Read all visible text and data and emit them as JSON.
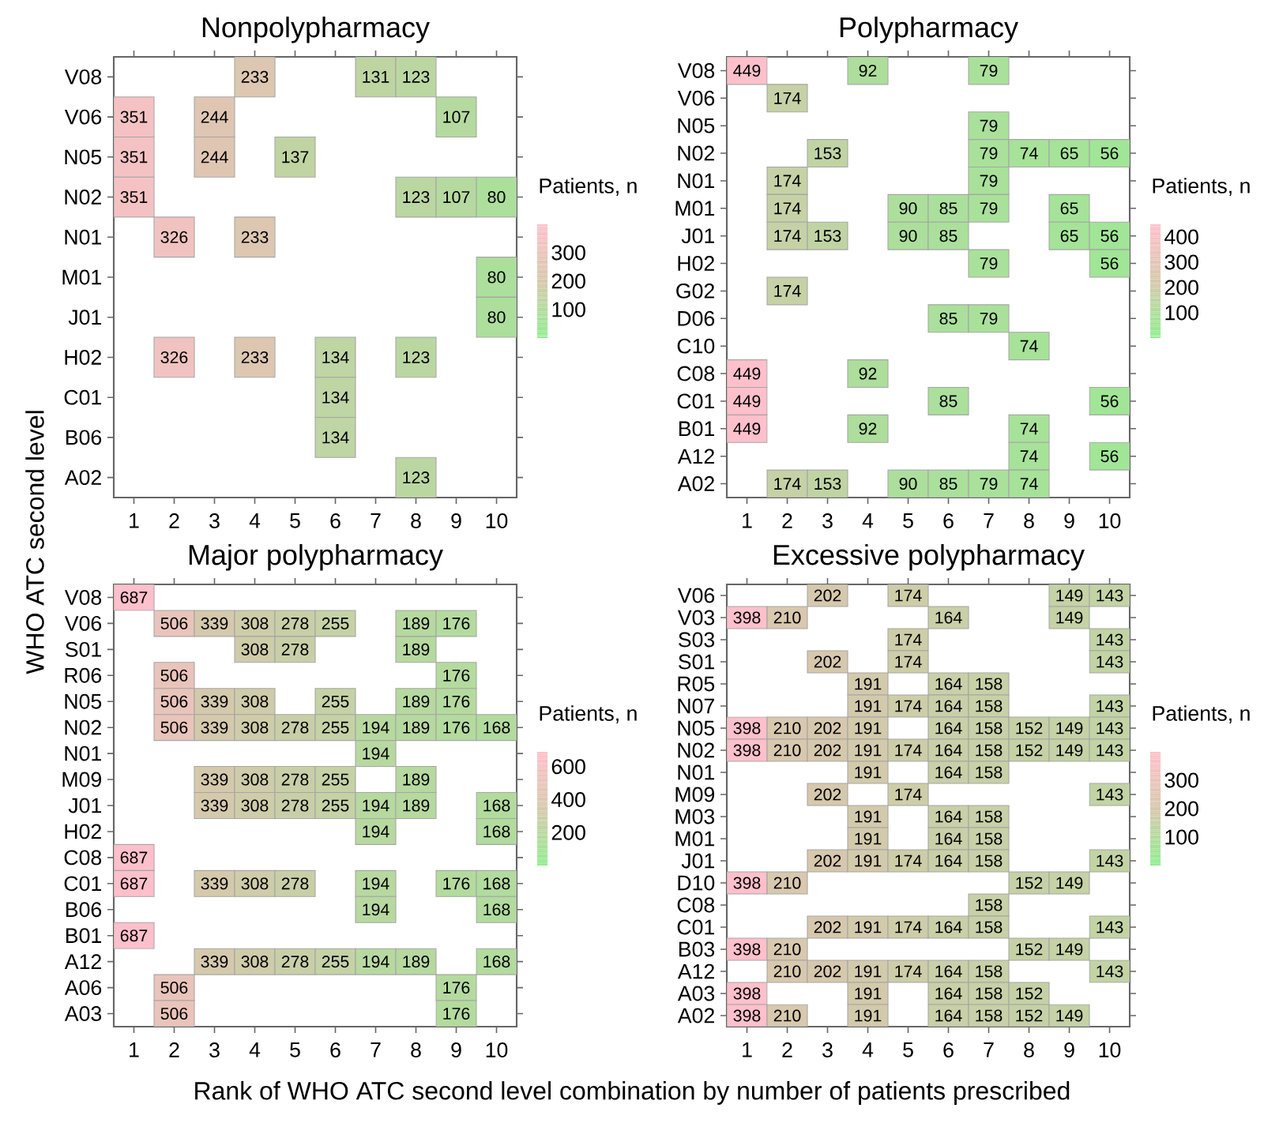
{
  "chart_data": [
    {
      "type": "heatmap",
      "title": "Nonpolypharmacy",
      "ylabel": "WHO ATC second level",
      "clabel": "Patients, n",
      "data_labels": true,
      "categories": [
        "1",
        "2",
        "3",
        "4",
        "5",
        "6",
        "7",
        "8",
        "9",
        "10"
      ],
      "y_categories": [
        "V08",
        "V06",
        "N05",
        "N02",
        "N01",
        "M01",
        "J01",
        "H02",
        "C01",
        "B06",
        "A02"
      ],
      "cells": [
        [
          null,
          null,
          null,
          233,
          null,
          null,
          131,
          123,
          null,
          null
        ],
        [
          351,
          null,
          244,
          null,
          null,
          null,
          null,
          null,
          107,
          null
        ],
        [
          351,
          null,
          244,
          null,
          137,
          null,
          null,
          null,
          null,
          null
        ],
        [
          351,
          null,
          null,
          null,
          null,
          null,
          null,
          123,
          107,
          80
        ],
        [
          null,
          326,
          null,
          233,
          null,
          null,
          null,
          null,
          null,
          null
        ],
        [
          null,
          null,
          null,
          null,
          null,
          null,
          null,
          null,
          null,
          80
        ],
        [
          null,
          null,
          null,
          null,
          null,
          null,
          null,
          null,
          null,
          80
        ],
        [
          null,
          326,
          null,
          233,
          null,
          134,
          null,
          123,
          null,
          null
        ],
        [
          null,
          null,
          null,
          null,
          null,
          134,
          null,
          null,
          null,
          null
        ],
        [
          null,
          null,
          null,
          null,
          null,
          134,
          null,
          null,
          null,
          null
        ],
        [
          null,
          null,
          null,
          null,
          null,
          null,
          null,
          123,
          null,
          null
        ]
      ],
      "clim": [
        0,
        400
      ],
      "cticks": [
        100,
        200,
        300
      ]
    },
    {
      "type": "heatmap",
      "title": "Polypharmacy",
      "clabel": "Patients, n",
      "data_labels": true,
      "categories": [
        "1",
        "2",
        "3",
        "4",
        "5",
        "6",
        "7",
        "8",
        "9",
        "10"
      ],
      "y_categories": [
        "V08",
        "V06",
        "N05",
        "N02",
        "N01",
        "M01",
        "J01",
        "H02",
        "G02",
        "D06",
        "C10",
        "C08",
        "C01",
        "B01",
        "A12",
        "A02"
      ],
      "cells": [
        [
          449,
          null,
          null,
          92,
          null,
          null,
          79,
          null,
          null,
          null
        ],
        [
          null,
          174,
          null,
          null,
          null,
          null,
          null,
          null,
          null,
          null
        ],
        [
          null,
          null,
          null,
          null,
          null,
          null,
          79,
          null,
          null,
          null
        ],
        [
          null,
          null,
          153,
          null,
          null,
          null,
          79,
          74,
          65,
          56
        ],
        [
          null,
          174,
          null,
          null,
          null,
          null,
          79,
          null,
          null,
          null
        ],
        [
          null,
          174,
          null,
          null,
          90,
          85,
          79,
          null,
          65,
          null
        ],
        [
          null,
          174,
          153,
          null,
          90,
          85,
          null,
          null,
          65,
          56
        ],
        [
          null,
          null,
          null,
          null,
          null,
          null,
          79,
          null,
          null,
          56
        ],
        [
          null,
          174,
          null,
          null,
          null,
          null,
          null,
          null,
          null,
          null
        ],
        [
          null,
          null,
          null,
          null,
          null,
          85,
          79,
          null,
          null,
          null
        ],
        [
          null,
          null,
          null,
          null,
          null,
          null,
          null,
          74,
          null,
          null
        ],
        [
          449,
          null,
          null,
          92,
          null,
          null,
          null,
          null,
          null,
          null
        ],
        [
          449,
          null,
          null,
          null,
          null,
          85,
          null,
          null,
          null,
          56
        ],
        [
          449,
          null,
          null,
          92,
          null,
          null,
          null,
          74,
          null,
          null
        ],
        [
          null,
          null,
          null,
          null,
          null,
          null,
          null,
          74,
          null,
          56
        ],
        [
          null,
          174,
          153,
          null,
          90,
          85,
          79,
          74,
          null,
          null
        ]
      ],
      "clim": [
        0,
        450
      ],
      "cticks": [
        100,
        200,
        300,
        400
      ]
    },
    {
      "type": "heatmap",
      "title": "Major polypharmacy",
      "xlabel": "Rank of WHO ATC second level combination by number of patients prescribed",
      "clabel": "Patients, n",
      "data_labels": true,
      "categories": [
        "1",
        "2",
        "3",
        "4",
        "5",
        "6",
        "7",
        "8",
        "9",
        "10"
      ],
      "y_categories": [
        "V08",
        "V06",
        "S01",
        "R06",
        "N05",
        "N02",
        "N01",
        "M09",
        "J01",
        "H02",
        "C08",
        "C01",
        "B06",
        "B01",
        "A12",
        "A06",
        "A03"
      ],
      "cells": [
        [
          687,
          null,
          null,
          null,
          null,
          null,
          null,
          null,
          null,
          null
        ],
        [
          null,
          506,
          339,
          308,
          278,
          255,
          null,
          189,
          176,
          null
        ],
        [
          null,
          null,
          null,
          308,
          278,
          null,
          null,
          189,
          null,
          null
        ],
        [
          null,
          506,
          null,
          null,
          null,
          null,
          null,
          null,
          176,
          null
        ],
        [
          null,
          506,
          339,
          308,
          null,
          255,
          null,
          189,
          176,
          null
        ],
        [
          null,
          506,
          339,
          308,
          278,
          255,
          194,
          189,
          176,
          168
        ],
        [
          null,
          null,
          null,
          null,
          null,
          null,
          194,
          null,
          null,
          null
        ],
        [
          null,
          null,
          339,
          308,
          278,
          255,
          null,
          189,
          null,
          null
        ],
        [
          null,
          null,
          339,
          308,
          278,
          255,
          194,
          189,
          null,
          168
        ],
        [
          null,
          null,
          null,
          null,
          null,
          null,
          194,
          null,
          null,
          168
        ],
        [
          687,
          null,
          null,
          null,
          null,
          null,
          null,
          null,
          null,
          null
        ],
        [
          687,
          null,
          339,
          308,
          278,
          null,
          194,
          null,
          176,
          168
        ],
        [
          null,
          null,
          null,
          null,
          null,
          null,
          194,
          null,
          null,
          168
        ],
        [
          687,
          null,
          null,
          null,
          null,
          null,
          null,
          null,
          null,
          null
        ],
        [
          null,
          null,
          339,
          308,
          278,
          255,
          194,
          189,
          null,
          168
        ],
        [
          null,
          506,
          null,
          null,
          null,
          null,
          null,
          null,
          176,
          null
        ],
        [
          null,
          506,
          null,
          null,
          null,
          null,
          null,
          null,
          176,
          null
        ]
      ],
      "clim": [
        0,
        690
      ],
      "cticks": [
        200,
        400,
        600
      ]
    },
    {
      "type": "heatmap",
      "title": "Excessive polypharmacy",
      "clabel": "Patients, n",
      "data_labels": true,
      "categories": [
        "1",
        "2",
        "3",
        "4",
        "5",
        "6",
        "7",
        "8",
        "9",
        "10"
      ],
      "y_categories": [
        "V06",
        "V03",
        "S03",
        "S01",
        "R05",
        "N07",
        "N05",
        "N02",
        "N01",
        "M09",
        "M03",
        "M01",
        "J01",
        "D10",
        "C08",
        "C01",
        "B03",
        "A12",
        "A03",
        "A02"
      ],
      "cells": [
        [
          null,
          null,
          202,
          null,
          174,
          null,
          null,
          null,
          149,
          143
        ],
        [
          398,
          210,
          null,
          null,
          null,
          164,
          null,
          null,
          149,
          null
        ],
        [
          null,
          null,
          null,
          null,
          174,
          null,
          null,
          null,
          null,
          143
        ],
        [
          null,
          null,
          202,
          null,
          174,
          null,
          null,
          null,
          null,
          143
        ],
        [
          null,
          null,
          null,
          191,
          null,
          164,
          158,
          null,
          null,
          null
        ],
        [
          null,
          null,
          null,
          191,
          174,
          164,
          158,
          null,
          null,
          143
        ],
        [
          398,
          210,
          202,
          191,
          null,
          164,
          158,
          152,
          149,
          143
        ],
        [
          398,
          210,
          202,
          191,
          174,
          164,
          158,
          152,
          149,
          143
        ],
        [
          null,
          null,
          null,
          191,
          null,
          164,
          158,
          null,
          null,
          null
        ],
        [
          null,
          null,
          202,
          null,
          174,
          null,
          null,
          null,
          null,
          143
        ],
        [
          null,
          null,
          null,
          191,
          null,
          164,
          158,
          null,
          null,
          null
        ],
        [
          null,
          null,
          null,
          191,
          null,
          164,
          158,
          null,
          null,
          null
        ],
        [
          null,
          null,
          202,
          191,
          174,
          164,
          158,
          null,
          null,
          143
        ],
        [
          398,
          210,
          null,
          null,
          null,
          null,
          null,
          152,
          149,
          null
        ],
        [
          null,
          null,
          null,
          null,
          null,
          null,
          158,
          null,
          null,
          null
        ],
        [
          null,
          null,
          202,
          191,
          174,
          164,
          158,
          null,
          null,
          143
        ],
        [
          398,
          210,
          null,
          null,
          null,
          null,
          null,
          152,
          149,
          null
        ],
        [
          null,
          210,
          202,
          191,
          174,
          164,
          158,
          null,
          null,
          143
        ],
        [
          398,
          null,
          null,
          191,
          null,
          164,
          158,
          152,
          null,
          null
        ],
        [
          398,
          210,
          null,
          191,
          null,
          164,
          158,
          152,
          149,
          null
        ]
      ],
      "clim": [
        0,
        400
      ],
      "cticks": [
        100,
        200,
        300
      ]
    }
  ]
}
